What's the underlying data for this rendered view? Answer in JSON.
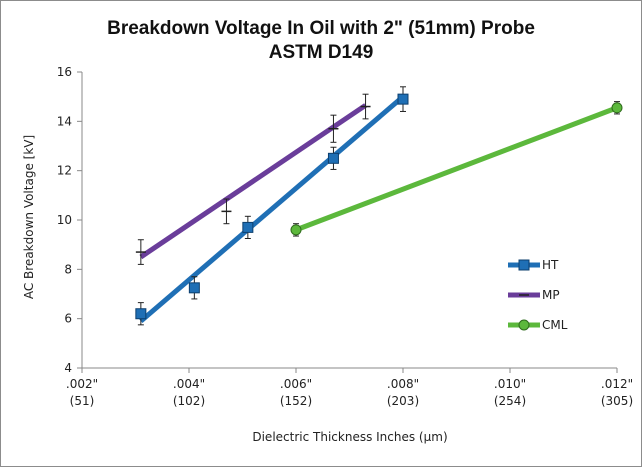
{
  "chart_data": {
    "type": "line",
    "title": "Breakdown Voltage In Oil with 2\" (51mm) Probe",
    "subtitle": "ASTM D149",
    "xlabel": "Dielectric Thickness Inches (µm)",
    "ylabel": "AC Breakdown Voltage [kV]",
    "xlim": [
      0.002,
      0.012
    ],
    "ylim": [
      4,
      16
    ],
    "x_ticks": [
      {
        "value": 0.002,
        "line1": ".002\"",
        "line2": "(51)"
      },
      {
        "value": 0.004,
        "line1": ".004\"",
        "line2": "(102)"
      },
      {
        "value": 0.006,
        "line1": ".006\"",
        "line2": "(152)"
      },
      {
        "value": 0.008,
        "line1": ".008\"",
        "line2": "(203)"
      },
      {
        "value": 0.01,
        "line1": ".010\"",
        "line2": "(254)"
      },
      {
        "value": 0.012,
        "line1": ".012\"",
        "line2": "(305)"
      }
    ],
    "y_ticks": [
      4,
      6,
      8,
      10,
      12,
      14,
      16
    ],
    "grid": false,
    "legend_position": "right",
    "series": [
      {
        "name": "HT",
        "color": "#1f6fb5",
        "marker": "square",
        "fit_line": {
          "x": [
            0.0031,
            0.008
          ],
          "y": [
            5.9,
            15.0
          ]
        },
        "points": [
          {
            "x": 0.0031,
            "y": 6.2,
            "err": 0.45
          },
          {
            "x": 0.0041,
            "y": 7.25,
            "err": 0.45
          },
          {
            "x": 0.0051,
            "y": 9.7,
            "err": 0.45
          },
          {
            "x": 0.0067,
            "y": 12.5,
            "err": 0.45
          },
          {
            "x": 0.008,
            "y": 14.9,
            "err": 0.5
          }
        ]
      },
      {
        "name": "MP",
        "color": "#6a3d9a",
        "marker": "dash",
        "fit_line": {
          "x": [
            0.0031,
            0.0073
          ],
          "y": [
            8.5,
            14.65
          ]
        },
        "points": [
          {
            "x": 0.0031,
            "y": 8.7,
            "err": 0.5
          },
          {
            "x": 0.0047,
            "y": 10.35,
            "err": 0.5
          },
          {
            "x": 0.0067,
            "y": 13.7,
            "err": 0.55
          },
          {
            "x": 0.0073,
            "y": 14.6,
            "err": 0.5
          }
        ]
      },
      {
        "name": "CML",
        "color": "#5cb83c",
        "marker": "circle",
        "fit_line": {
          "x": [
            0.006,
            0.012
          ],
          "y": [
            9.6,
            14.55
          ]
        },
        "points": [
          {
            "x": 0.006,
            "y": 9.6,
            "err": 0.25
          },
          {
            "x": 0.012,
            "y": 14.55,
            "err": 0.25
          }
        ]
      }
    ]
  }
}
